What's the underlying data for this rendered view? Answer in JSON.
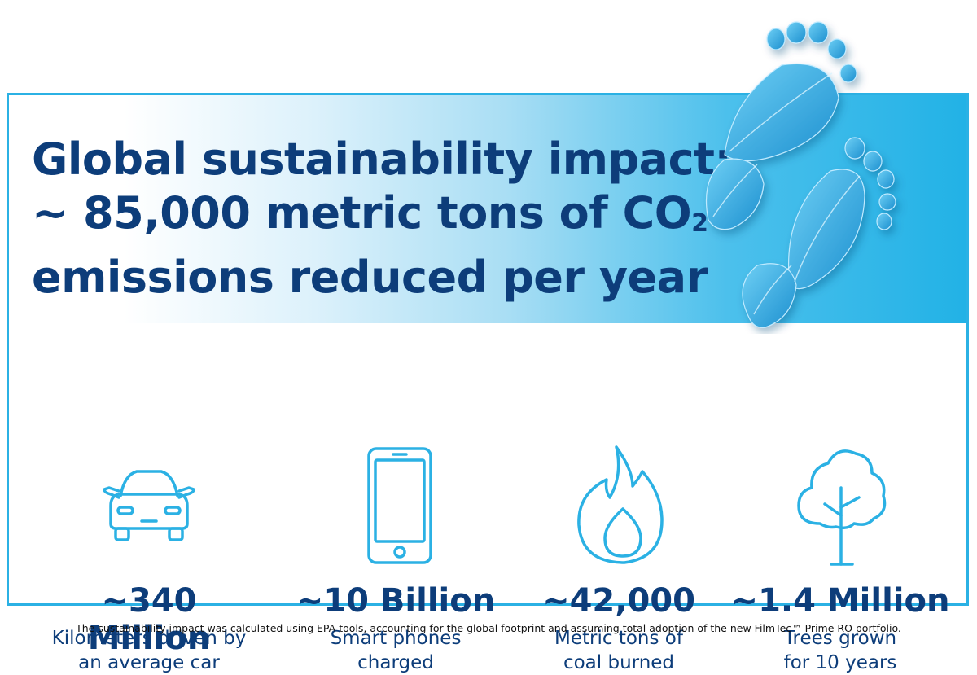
{
  "headline": {
    "line1": "Global sustainability impact:",
    "line2_prefix": "~ 85,000 metric tons of CO",
    "line2_sub": "2",
    "line3": "emissions reduced per year"
  },
  "stats": [
    {
      "icon": "car-icon",
      "value": "~340 Million",
      "label_line1": "Kilometers driven by",
      "label_line2": "an average car"
    },
    {
      "icon": "smartphone-icon",
      "value": "~10 Billion",
      "label_line1": "Smart phones",
      "label_line2": "charged"
    },
    {
      "icon": "flame-icon",
      "value": "~42,000",
      "label_line1": "Metric tons of",
      "label_line2": "coal burned"
    },
    {
      "icon": "tree-icon",
      "value": "~1.4 Million",
      "label_line1": "Trees grown",
      "label_line2": "for 10 years"
    }
  ],
  "footnote": "The sustainability impact was calculated using EPA tools, accounting for the global footprint and assuming total adoption of the new FilmTec™ Prime RO portfolio.",
  "colors": {
    "navy": "#0d3d7a",
    "accent": "#2bb1e4",
    "leaf": "#3aa9dd"
  }
}
